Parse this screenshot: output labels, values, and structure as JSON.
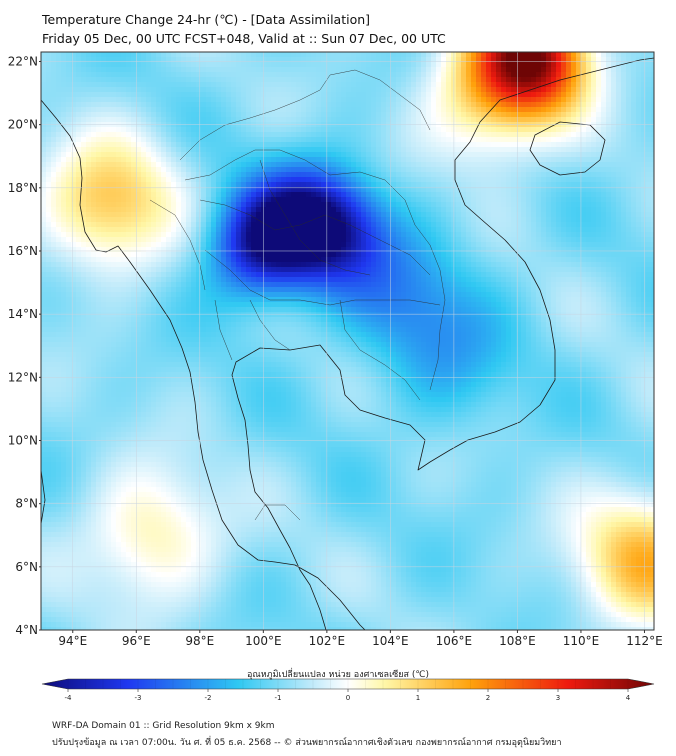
{
  "header": {
    "title": "Temperature Change 24-hr (℃) - [Data Assimilation]",
    "subtitle": "Friday 05 Dec, 00 UTC FCST+048, Valid at :: Sun 07 Dec, 00 UTC"
  },
  "map": {
    "lat_labels": [
      "22°N",
      "20°N",
      "18°N",
      "16°N",
      "14°N",
      "12°N",
      "10°N",
      "8°N",
      "6°N",
      "4°N"
    ],
    "lon_labels": [
      "94°E",
      "96°E",
      "98°E",
      "100°E",
      "102°E",
      "104°E",
      "106°E",
      "108°E",
      "110°E",
      "112°E"
    ],
    "lat_range": [
      4,
      22.3
    ],
    "lon_range": [
      93,
      112.3
    ],
    "field_peaks": [
      {
        "lon": 99.9,
        "lat": 16.1,
        "value": -3.6
      },
      {
        "lon": 102.3,
        "lat": 16.6,
        "value": -3.0
      },
      {
        "lon": 101.2,
        "lat": 17.2,
        "value": -2.7
      },
      {
        "lon": 104.5,
        "lat": 14.6,
        "value": -2.0
      },
      {
        "lon": 106.0,
        "lat": 12.5,
        "value": -1.6
      },
      {
        "lon": 108.5,
        "lat": 22.2,
        "value": 3.2
      },
      {
        "lon": 107.3,
        "lat": 21.0,
        "value": 1.2
      },
      {
        "lon": 95.2,
        "lat": 17.5,
        "value": 1.2
      },
      {
        "lon": 112.0,
        "lat": 6.3,
        "value": 1.3
      },
      {
        "lon": 96.5,
        "lat": 7.0,
        "value": 0.6
      }
    ]
  },
  "colorbar": {
    "label": "อุณหภูมิเปลี่ยนแปลง หน่วย องศาเซลเซียส (℃)",
    "min": -4,
    "max": 4,
    "ticks": [
      "-4",
      "-3",
      "-2",
      "-1",
      "0",
      "1",
      "2",
      "3",
      "4"
    ],
    "colors": {
      "deep_blue": "#0d0a78",
      "blue": "#1f38f0",
      "light_blue": "#2fc8f2",
      "pale_blue": "#bfeafa",
      "white": "#ffffff",
      "pale_yellow": "#fff7a8",
      "orange": "#ffa20c",
      "red": "#ee1a0f",
      "dark_red": "#6e0505"
    }
  },
  "footer": {
    "line1": "WRF-DA Domain 01 :: Grid Resolution 9km x 9km",
    "line2": "ปรับปรุงข้อมูล ณ เวลา 07:00น. วัน ศ. ที่ 05 ธ.ค. 2568 -- © ส่วนพยากรณ์อากาศเชิงตัวเลข กองพยากรณ์อากาศ กรมอุตุนิยมวิทยา"
  }
}
